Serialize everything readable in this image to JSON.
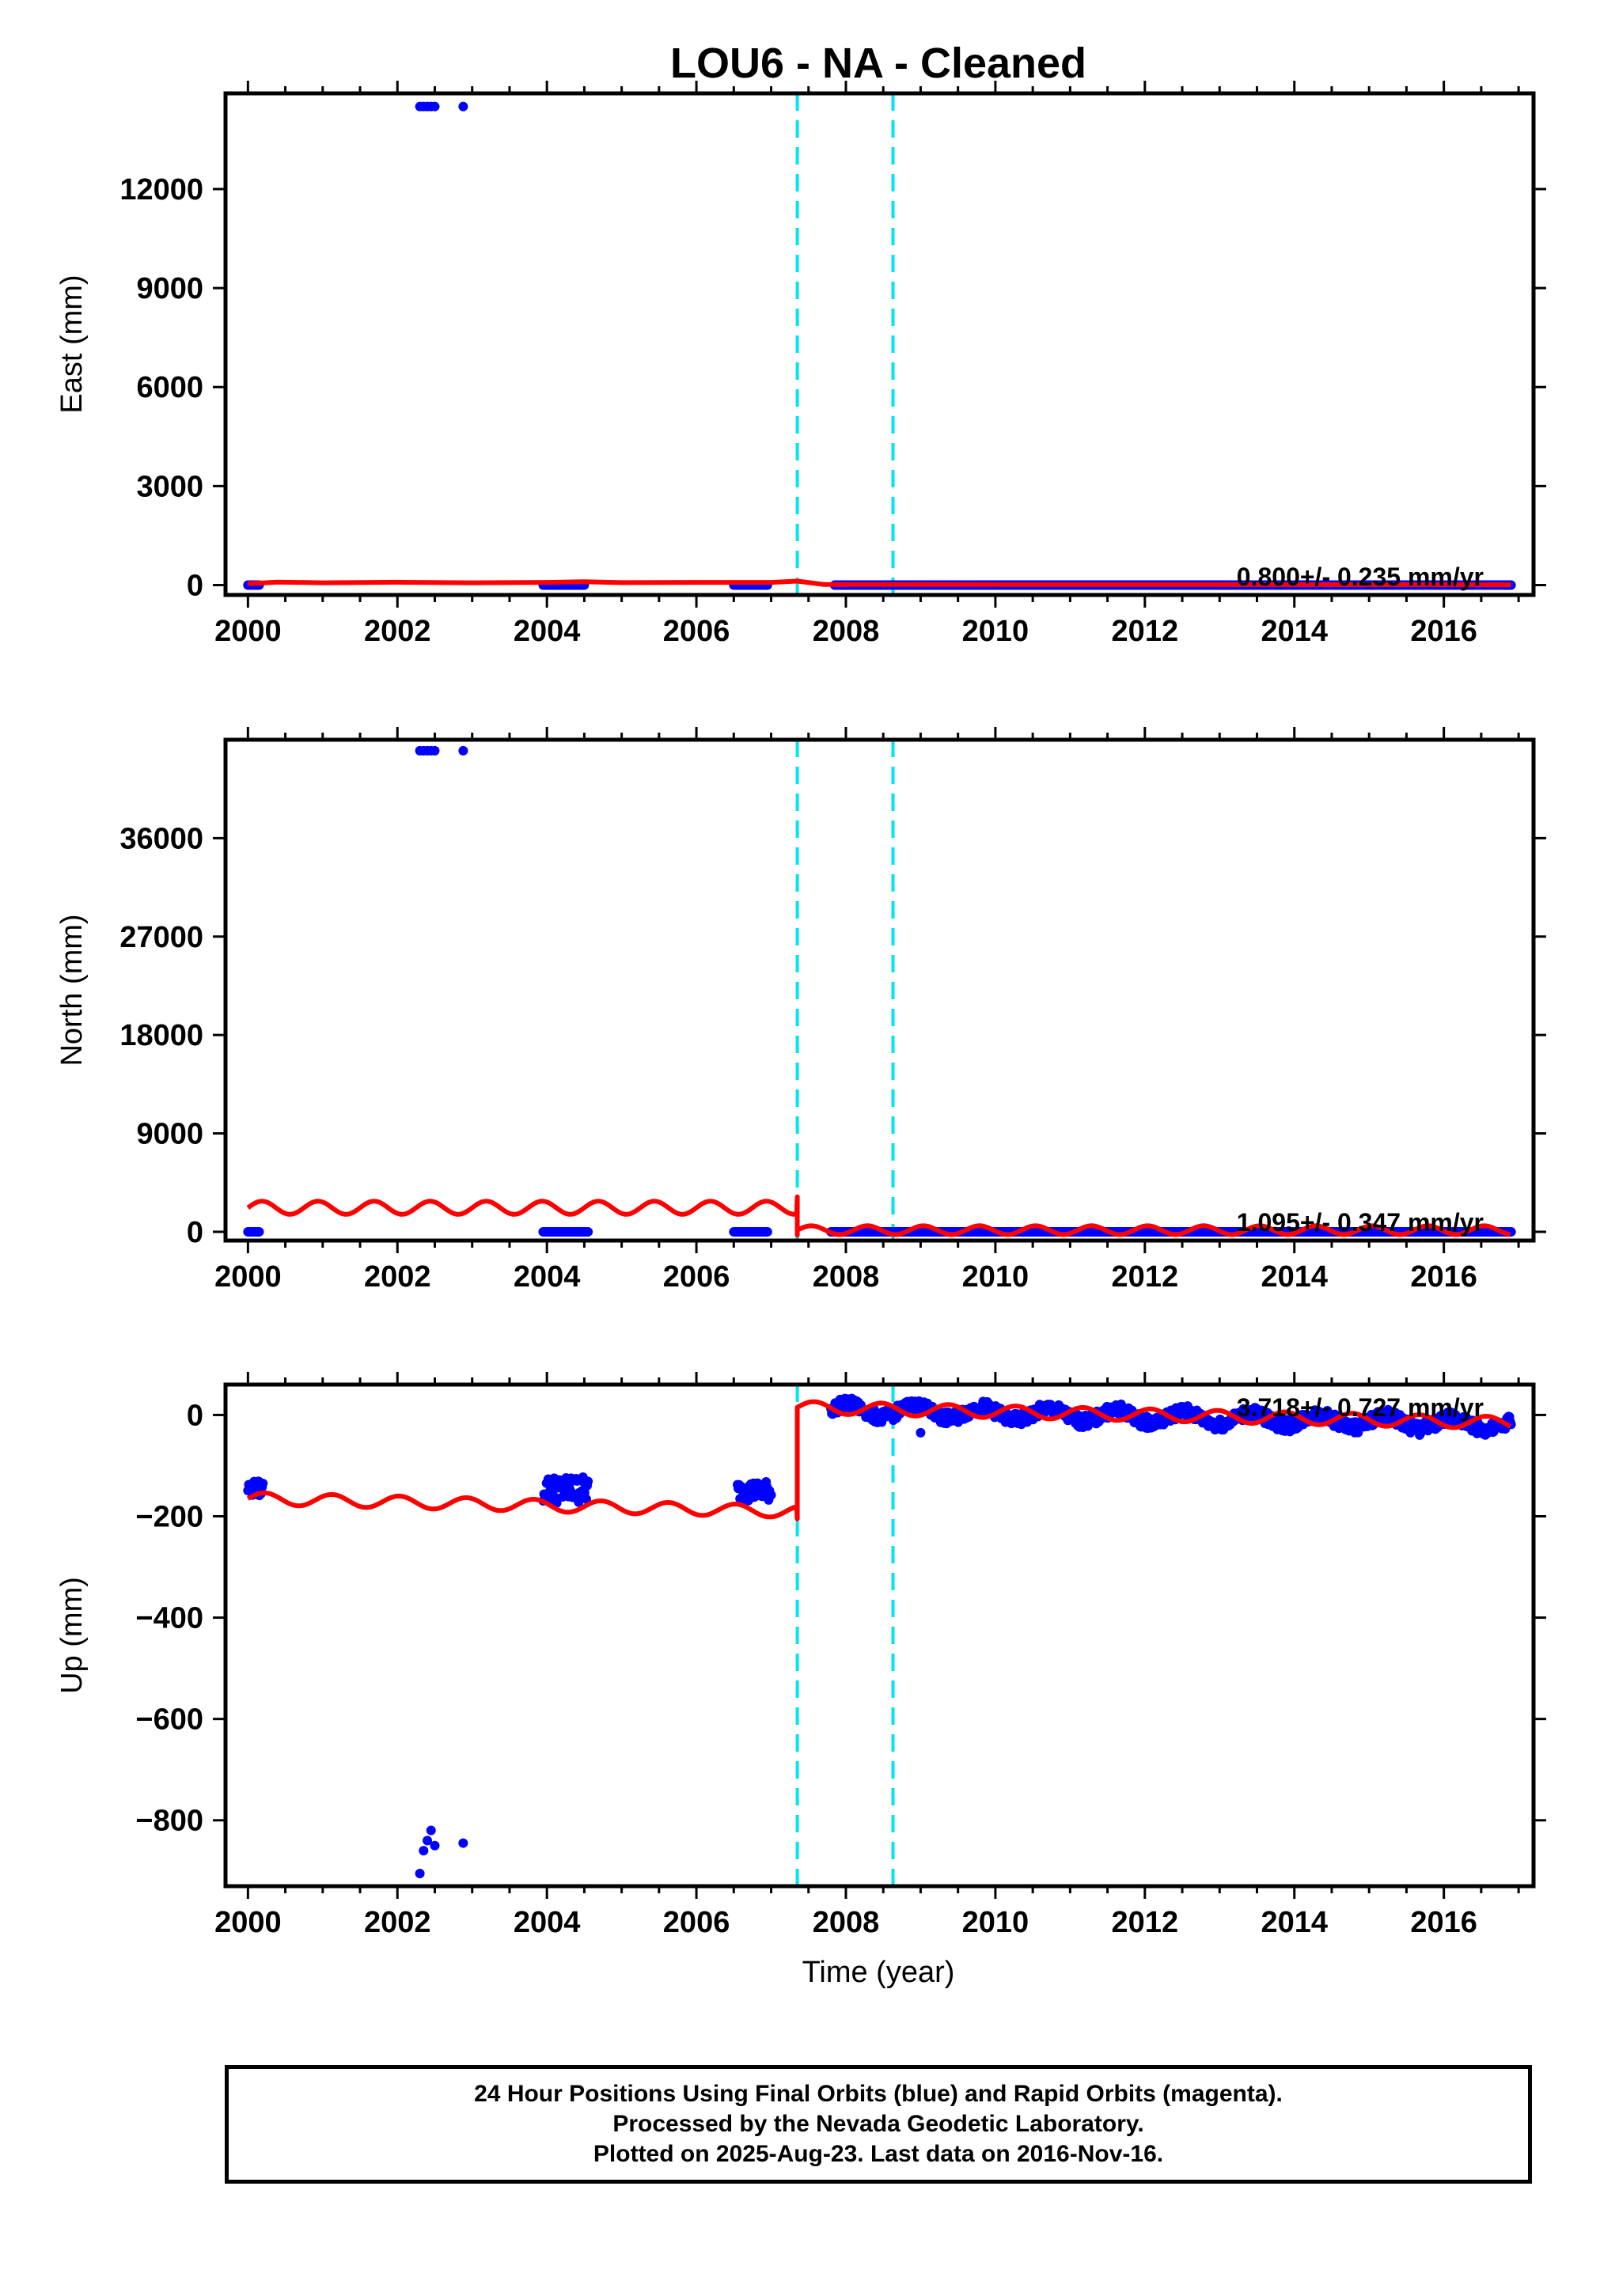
{
  "chart_data": {
    "type": "scatter",
    "title": "LOU6  - NA - Cleaned",
    "xlabel": "Time (year)",
    "xlim": [
      1999.7,
      2017.2
    ],
    "xticks": [
      2000,
      2002,
      2004,
      2006,
      2008,
      2010,
      2012,
      2014,
      2016
    ],
    "xtick_labels": [
      "2000",
      "2002",
      "2004",
      "2006",
      "2008",
      "2010",
      "2012",
      "2014",
      "2016"
    ],
    "grid": false,
    "colors": {
      "data": "#0000ff",
      "model": "#ff0000",
      "steps": "#00e5ee",
      "frame": "#000000"
    },
    "step_epochs": [
      2007.35,
      2008.63
    ],
    "panels": [
      {
        "name": "east",
        "ylabel": "East (mm)",
        "ylim": [
          -300,
          14900
        ],
        "yticks": [
          0,
          3000,
          6000,
          9000,
          12000
        ],
        "ytick_labels": [
          "0",
          "3000",
          "6000",
          "9000",
          "12000"
        ],
        "rate_text": "0.800+/- 0.235 mm/yr",
        "clusters": [
          {
            "x": [
              2000.0,
              2000.15
            ],
            "y": [
              0,
              0
            ]
          },
          {
            "x": [
              2003.95,
              2004.5
            ],
            "y": [
              0,
              0
            ]
          },
          {
            "x": [
              2006.5,
              2006.95
            ],
            "y": [
              0,
              0
            ]
          },
          {
            "x": [
              2007.85,
              2016.9
            ],
            "y": [
              0,
              0
            ]
          }
        ],
        "outliers": [
          {
            "x": 2002.3,
            "y": 14500
          },
          {
            "x": 2002.35,
            "y": 14500
          },
          {
            "x": 2002.4,
            "y": 14500
          },
          {
            "x": 2002.45,
            "y": 14500
          },
          {
            "x": 2002.5,
            "y": 14500
          },
          {
            "x": 2002.88,
            "y": 14500
          }
        ],
        "model": [
          {
            "x": 2000.0,
            "y": 40
          },
          {
            "x": 2000.4,
            "y": 90
          },
          {
            "x": 2001.0,
            "y": 70
          },
          {
            "x": 2002.0,
            "y": 85
          },
          {
            "x": 2003.0,
            "y": 70
          },
          {
            "x": 2004.0,
            "y": 80
          },
          {
            "x": 2004.5,
            "y": 100
          },
          {
            "x": 2005.0,
            "y": 75
          },
          {
            "x": 2006.0,
            "y": 80
          },
          {
            "x": 2007.0,
            "y": 80
          },
          {
            "x": 2007.35,
            "y": 120
          },
          {
            "x": 2007.7,
            "y": 20
          },
          {
            "x": 2010.0,
            "y": 15
          },
          {
            "x": 2013.0,
            "y": 15
          },
          {
            "x": 2016.9,
            "y": 10
          }
        ]
      },
      {
        "name": "north",
        "ylabel": "North (mm)",
        "ylim": [
          -800,
          45000
        ],
        "yticks": [
          0,
          9000,
          18000,
          27000,
          36000
        ],
        "ytick_labels": [
          "0",
          "9000",
          "18000",
          "27000",
          "36000"
        ],
        "rate_text": "1.095+/- 0.347 mm/yr",
        "clusters": [
          {
            "x": [
              2000.0,
              2000.15
            ],
            "y": [
              0,
              0
            ]
          },
          {
            "x": [
              2003.95,
              2004.55
            ],
            "y": [
              0,
              0
            ]
          },
          {
            "x": [
              2006.5,
              2006.95
            ],
            "y": [
              0,
              0
            ]
          },
          {
            "x": [
              2007.8,
              2016.9
            ],
            "y": [
              0,
              0
            ]
          }
        ],
        "outliers": [
          {
            "x": 2002.3,
            "y": 44000
          },
          {
            "x": 2002.35,
            "y": 44000
          },
          {
            "x": 2002.4,
            "y": 44000
          },
          {
            "x": 2002.45,
            "y": 44000
          },
          {
            "x": 2002.5,
            "y": 44000
          },
          {
            "x": 2002.88,
            "y": 44000
          }
        ],
        "model_before": {
          "x0": 2000.0,
          "x1": 2007.35,
          "base": 2200,
          "amp": 600,
          "period": 0.75
        },
        "model_after": {
          "x0": 2007.35,
          "x1": 2016.9,
          "base": 150,
          "amp": 400,
          "period": 0.75
        },
        "model_jump": {
          "x": 2007.35,
          "from": 3200,
          "to": -300
        }
      },
      {
        "name": "up",
        "ylabel": "Up (mm)",
        "ylim": [
          -930,
          60
        ],
        "yticks": [
          0,
          -200,
          -400,
          -600,
          -800
        ],
        "ytick_labels": [
          "0",
          "−200",
          "−400",
          "−600",
          "−800"
        ],
        "rate_text": "3.718+/- 0.727 mm/yr",
        "clusters": [
          {
            "x": [
              2000.0,
              2000.2
            ],
            "y": [
              -160,
              -130
            ]
          },
          {
            "x": [
              2003.95,
              2004.55
            ],
            "y": [
              -175,
              -120
            ]
          },
          {
            "x": [
              2006.55,
              2007.0
            ],
            "y": [
              -170,
              -130
            ]
          },
          {
            "x": [
              2007.8,
              2016.9
            ],
            "y": [
              -30,
              30
            ]
          }
        ],
        "outliers": [
          {
            "x": 2002.3,
            "y": -905
          },
          {
            "x": 2002.35,
            "y": -860
          },
          {
            "x": 2002.4,
            "y": -840
          },
          {
            "x": 2002.45,
            "y": -820
          },
          {
            "x": 2002.5,
            "y": -850
          },
          {
            "x": 2002.88,
            "y": -845
          },
          {
            "x": 2009.0,
            "y": -35
          }
        ],
        "model_before": {
          "x0": 2000.0,
          "x1": 2007.35,
          "base": -165,
          "amp": 12,
          "period": 0.9,
          "slope": -3.5
        },
        "model_after": {
          "x0": 2007.35,
          "x1": 2016.9,
          "base": 15,
          "amp": 12,
          "period": 0.9,
          "slope": -3.2
        },
        "model_jump": {
          "x": 2007.35,
          "from": -205,
          "to": 10
        }
      }
    ]
  },
  "footer": {
    "line1": "24 Hour Positions Using Final Orbits (blue) and Rapid Orbits (magenta).",
    "line2": "Processed by the Nevada Geodetic Laboratory.",
    "line3": "Plotted on 2025-Aug-23. Last data on 2016-Nov-16."
  }
}
